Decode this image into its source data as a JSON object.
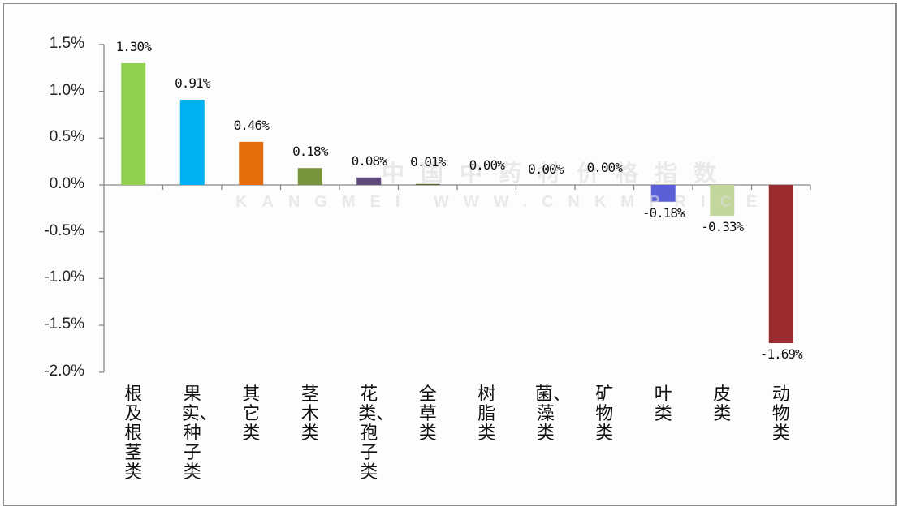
{
  "chart_data": {
    "type": "bar",
    "title": "",
    "xlabel": "",
    "ylabel": "",
    "ylim": [
      -2.0,
      1.5
    ],
    "yticks": [
      "1.5%",
      "1.0%",
      "0.5%",
      "0.0%",
      "-0.5%",
      "-1.0%",
      "-1.5%",
      "-2.0%"
    ],
    "grid": false,
    "legend": null,
    "categories": [
      "根及根茎类",
      "果实、种子类",
      "其它类",
      "茎木类",
      "花类、孢子类",
      "全草类",
      "树脂类",
      "菌、藻类",
      "矿物类",
      "叶类",
      "皮类",
      "动物类"
    ],
    "values": [
      1.3,
      0.91,
      0.46,
      0.18,
      0.08,
      0.01,
      0.0,
      0.0,
      0.0,
      -0.18,
      -0.33,
      -1.69
    ],
    "value_labels": [
      "1.30%",
      "0.91%",
      "0.46%",
      "0.18%",
      "0.08%",
      "0.01%",
      "0.00%",
      "0.00%",
      "0.00%",
      "-0.18%",
      "-0.33%",
      "-1.69%"
    ],
    "colors": [
      "#92d050",
      "#00b0f0",
      "#e46c0a",
      "#77933c",
      "#604a7b",
      "#4f6228",
      "#31859c",
      "#8064a2",
      "#4bacc6",
      "#5b5fd6",
      "#c3d69b",
      "#9b2d30"
    ]
  },
  "axis": {
    "tick_labels": [
      "1.5%",
      "1.0%",
      "0.5%",
      "0.0%",
      "-0.5%",
      "-1.0%",
      "-1.5%",
      "-2.0%"
    ]
  },
  "watermark": {
    "line1": "中国中药材价格指数",
    "line2": "KANGMEI WWW.CNKMPRICE"
  }
}
